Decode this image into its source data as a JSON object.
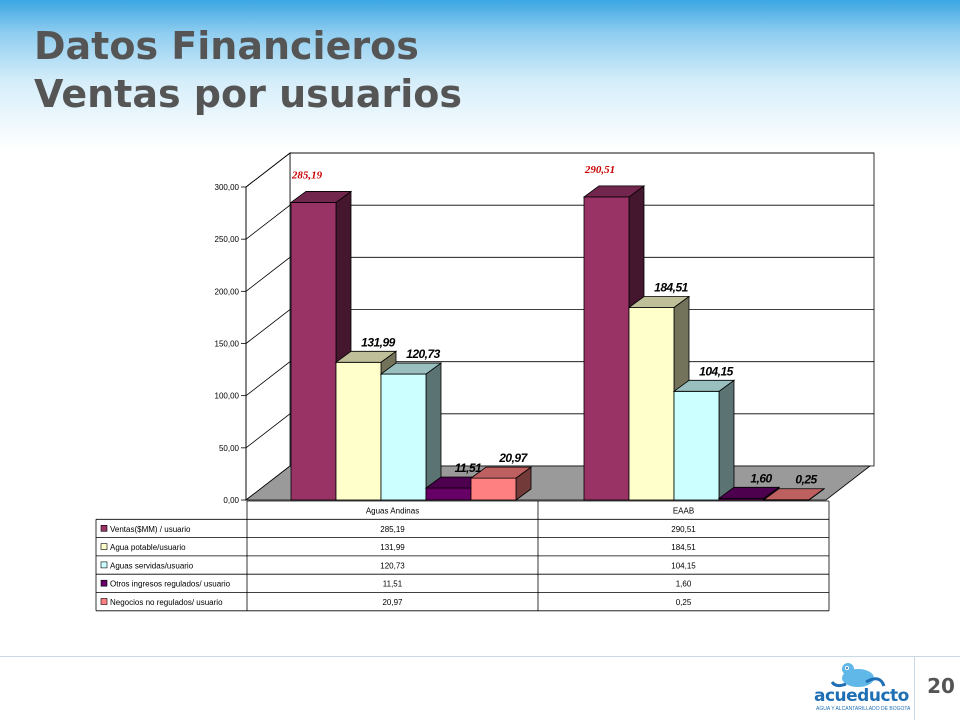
{
  "slide": {
    "title_line1": "Datos Financieros",
    "title_line2": "Ventas por usuarios",
    "page_number": "20"
  },
  "logo": {
    "name": "acueducto",
    "tagline": "AGUA Y ALCANTARILLADO DE BOGOTA"
  },
  "chart_data": {
    "type": "bar",
    "three_d": true,
    "categories": [
      "Aguas Andinas",
      "EAAB"
    ],
    "ylim": [
      0,
      300
    ],
    "ytick_step": 50,
    "ytick_labels": [
      "0,00",
      "50,00",
      "100,00",
      "150,00",
      "200,00",
      "250,00",
      "300,00"
    ],
    "grid": true,
    "series": [
      {
        "name": "Ventas($MM) / usuario",
        "values": [
          285.19,
          290.51
        ],
        "labels": [
          "285,19",
          "290,51"
        ],
        "table_labels": [
          "285,19",
          "290,51"
        ],
        "color": "#993366"
      },
      {
        "name": "Agua potable/usuario",
        "values": [
          131.99,
          184.51
        ],
        "labels": [
          "131,99",
          "184,51"
        ],
        "table_labels": [
          "131,99",
          "184,51"
        ],
        "color": "#ffffcc"
      },
      {
        "name": "Aguas servidas/usuario",
        "values": [
          120.73,
          104.15
        ],
        "labels": [
          "120,73",
          "104,15"
        ],
        "table_labels": [
          "120,73",
          "104,15"
        ],
        "color": "#ccffff"
      },
      {
        "name": "Otros ingresos regulados/ usuario",
        "values": [
          11.51,
          1.6
        ],
        "labels": [
          "11,51",
          "1,60"
        ],
        "table_labels": [
          "11,51",
          "1,60"
        ],
        "color": "#660066"
      },
      {
        "name": "Negocios no regulados/ usuario",
        "values": [
          20.97,
          0.25
        ],
        "labels": [
          "20,97",
          "0,25"
        ],
        "table_labels": [
          "20,97",
          "0,25"
        ],
        "color": "#ff8080"
      }
    ],
    "legend": "data-table"
  }
}
